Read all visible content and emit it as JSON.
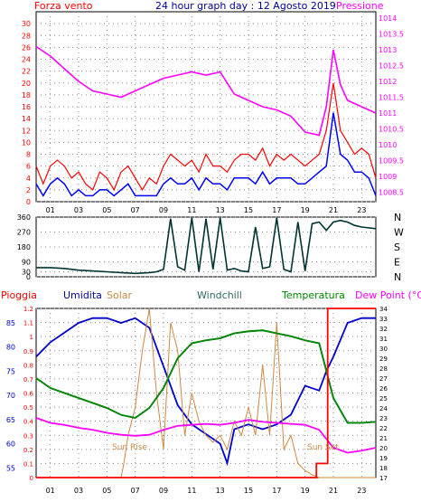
{
  "header": {
    "left_label": "Forza vento",
    "center_title": "24 hour graph day : 12 Agosto 2019",
    "right_label": "Pressione"
  },
  "colors": {
    "wind": "#ff0000",
    "wind_avg": "#0000ff",
    "pressure": "#ff00ff",
    "direction": "#003333",
    "rain": "#ff0000",
    "humidity": "#0000cc",
    "solar": "#cc8844",
    "windchill": "#336666",
    "temperature": "#008800",
    "dewpoint": "#ff00ff",
    "grid": "#888888",
    "axis_dark": "#000000"
  },
  "bottom_labels": {
    "pioggia": "Pioggia",
    "umidita": "Umidita",
    "solar": "Solar",
    "windchill": "Windchill",
    "temperatura": "Temperatura",
    "dewpoint": "Dew Point (°C)",
    "sunrise": "Sun Rise",
    "sunset": "Sun Set"
  },
  "chart_data": [
    {
      "type": "line",
      "title": "24 hour graph day : 12 Agosto 2019",
      "x_ticks": [
        "01",
        "03",
        "05",
        "07",
        "09",
        "11",
        "13",
        "15",
        "17",
        "19",
        "21",
        "23"
      ],
      "x_range": [
        0,
        24
      ],
      "left_axis": {
        "label": "Forza vento",
        "range": [
          0,
          32
        ],
        "ticks": [
          0,
          2,
          4,
          6,
          8,
          10,
          12,
          14,
          16,
          18,
          20,
          22,
          24,
          26,
          28,
          30
        ]
      },
      "right_axis": {
        "label": "Pressione",
        "range": [
          1008.2,
          1014.2
        ],
        "ticks": [
          1008.5,
          1009,
          1009.5,
          1010,
          1010.5,
          1011,
          1011.5,
          1012,
          1012.5,
          1013,
          1013.5,
          1014
        ]
      },
      "grid": true,
      "series": [
        {
          "axis": "left",
          "x": [
            0,
            0.5,
            1,
            1.5,
            2,
            2.5,
            3,
            3.5,
            4,
            4.5,
            5,
            5.5,
            6,
            6.5,
            7,
            7.5,
            8,
            8.5,
            9,
            9.5,
            10,
            10.5,
            11,
            11.5,
            12,
            12.5,
            13,
            13.5,
            14,
            14.5,
            15,
            15.5,
            16,
            16.5,
            17,
            17.5,
            18,
            18.5,
            19,
            19.5,
            20,
            20.5,
            21,
            21.5,
            22,
            22.5,
            23,
            23.5,
            24
          ],
          "y": [
            6,
            3,
            6,
            7,
            6,
            4,
            5,
            3,
            2,
            5,
            4,
            2,
            5,
            6,
            4,
            2,
            4,
            3,
            6,
            8,
            7,
            6,
            7,
            5,
            8,
            6,
            6,
            5,
            7,
            8,
            8,
            7,
            9,
            6,
            8,
            7,
            8,
            7,
            6,
            7,
            8,
            12,
            20,
            12,
            10,
            8,
            9,
            8,
            4
          ]
        },
        {
          "axis": "left",
          "x": [
            0,
            0.5,
            1,
            1.5,
            2,
            2.5,
            3,
            3.5,
            4,
            4.5,
            5,
            5.5,
            6,
            6.5,
            7,
            7.5,
            8,
            8.5,
            9,
            9.5,
            10,
            10.5,
            11,
            11.5,
            12,
            12.5,
            13,
            13.5,
            14,
            14.5,
            15,
            15.5,
            16,
            16.5,
            17,
            17.5,
            18,
            18.5,
            19,
            19.5,
            20,
            20.5,
            21,
            21.5,
            22,
            22.5,
            23,
            23.5,
            24
          ],
          "y": [
            3,
            1,
            3,
            4,
            3,
            1,
            2,
            1,
            1,
            2,
            2,
            1,
            2,
            3,
            1,
            1,
            1,
            1,
            3,
            4,
            3,
            3,
            4,
            2,
            4,
            3,
            3,
            2,
            4,
            4,
            4,
            3,
            5,
            3,
            4,
            4,
            4,
            3,
            3,
            4,
            5,
            6,
            15,
            8,
            7,
            5,
            5,
            4,
            1
          ]
        },
        {
          "axis": "right",
          "x": [
            0,
            1,
            2,
            3,
            4,
            5,
            6,
            7,
            8,
            9,
            10,
            11,
            12,
            13,
            14,
            15,
            16,
            17,
            18,
            19,
            20,
            20.5,
            21,
            21.5,
            22,
            23,
            24
          ],
          "y": [
            1013.1,
            1012.8,
            1012.4,
            1012.0,
            1011.7,
            1011.6,
            1011.5,
            1011.7,
            1011.9,
            1012.1,
            1012.2,
            1012.3,
            1012.2,
            1012.3,
            1011.6,
            1011.4,
            1011.2,
            1011.1,
            1010.9,
            1010.4,
            1010.3,
            1011.2,
            1013.0,
            1011.9,
            1011.4,
            1011.2,
            1011.0
          ]
        }
      ]
    },
    {
      "type": "line",
      "x_range": [
        0,
        24
      ],
      "left_axis": {
        "range": [
          0,
          360
        ],
        "ticks": [
          0,
          30,
          90,
          180,
          270,
          360
        ]
      },
      "right_axis": {
        "labels": [
          "N",
          "W",
          "S",
          "E",
          "N"
        ]
      },
      "grid": true,
      "series": [
        {
          "x": [
            0,
            1,
            2,
            3,
            4,
            5,
            6,
            7,
            8,
            8.5,
            9,
            9.5,
            10,
            10.5,
            11,
            11.5,
            12,
            12.5,
            13,
            13.5,
            14,
            14.5,
            15,
            15.5,
            16,
            16.5,
            17,
            17.5,
            18,
            18.5,
            19,
            19.5,
            20,
            20.5,
            21,
            21.5,
            22,
            22.5,
            23,
            24
          ],
          "y": [
            55,
            55,
            50,
            40,
            35,
            30,
            25,
            20,
            25,
            30,
            45,
            350,
            60,
            40,
            355,
            30,
            350,
            45,
            355,
            40,
            50,
            35,
            30,
            300,
            50,
            60,
            355,
            45,
            30,
            330,
            35,
            320,
            330,
            280,
            330,
            340,
            330,
            310,
            300,
            290
          ]
        }
      ]
    },
    {
      "type": "line",
      "x_range": [
        0,
        24
      ],
      "left_axes": [
        {
          "label": "Pioggia",
          "range": [
            0,
            1.2
          ],
          "ticks": [
            0,
            0.1,
            0.2,
            0.3,
            0.4,
            0.5,
            0.6,
            0.7,
            0.8,
            0.9,
            1,
            1.1,
            1.2
          ]
        },
        {
          "label": "Umidita",
          "range": [
            53,
            88
          ],
          "ticks": [
            55,
            60,
            65,
            70,
            75,
            80,
            85
          ]
        }
      ],
      "right_axis": {
        "label": "Dew Point (°C)",
        "range": [
          17,
          34
        ],
        "ticks": [
          17,
          18,
          19,
          20,
          21,
          22,
          23,
          24,
          25,
          26,
          27,
          28,
          29,
          30,
          31,
          32,
          33,
          34
        ]
      },
      "grid": true,
      "series": [
        {
          "name": "Umidita",
          "axis": "hum",
          "x": [
            0,
            1,
            2,
            3,
            4,
            5,
            6,
            7,
            8,
            9,
            10,
            11,
            12,
            13,
            13.5,
            14,
            15,
            16,
            17,
            18,
            19,
            20,
            20.5,
            21,
            22,
            23,
            24
          ],
          "y": [
            78,
            81,
            83,
            85,
            86,
            86,
            85,
            86,
            84,
            76,
            68,
            64,
            62,
            60,
            56,
            63,
            64,
            63,
            64,
            66,
            72,
            71,
            75,
            78,
            85,
            86,
            86
          ]
        },
        {
          "name": "Solar",
          "axis": "rain",
          "x": [
            0,
            6,
            6.2,
            6.5,
            7,
            7.5,
            8,
            8.5,
            9,
            9.5,
            10,
            10.5,
            11,
            11.5,
            12,
            12.5,
            13,
            13.5,
            14,
            14.5,
            15,
            15.5,
            16,
            16.5,
            17,
            17.5,
            18,
            18.5,
            19,
            19.5,
            20,
            24
          ],
          "y": [
            0,
            0,
            0.1,
            0.3,
            0.5,
            0.9,
            1.2,
            0.6,
            0.2,
            1.1,
            0.9,
            0.3,
            0.6,
            0.4,
            0.3,
            0.25,
            0.3,
            0.2,
            0.4,
            0.3,
            0.5,
            0.3,
            0.8,
            0.3,
            1.1,
            0.2,
            0.3,
            0.1,
            0.05,
            0.02,
            0,
            0
          ]
        },
        {
          "name": "Windchill",
          "axis": "dew",
          "x": [
            0,
            1,
            2,
            3,
            4,
            5,
            6,
            7,
            8,
            9,
            10,
            11,
            12,
            13,
            14,
            15,
            16,
            17,
            18,
            19,
            20,
            21,
            22,
            23,
            24
          ],
          "y": [
            27,
            26,
            25.5,
            25,
            24.5,
            24,
            23.3,
            23,
            24,
            26,
            29,
            30.5,
            30.8,
            31,
            31.5,
            31.7,
            31.8,
            31.5,
            31.2,
            30.8,
            30.5,
            25,
            22.5,
            22.5,
            22.6
          ]
        },
        {
          "name": "Temperatura",
          "axis": "dew",
          "x": [
            0,
            1,
            2,
            3,
            4,
            5,
            6,
            7,
            8,
            9,
            10,
            11,
            12,
            13,
            14,
            15,
            16,
            17,
            18,
            19,
            20,
            21,
            22,
            23,
            24
          ],
          "y": [
            27,
            26,
            25.5,
            25,
            24.5,
            24,
            23.3,
            23,
            24,
            26,
            29,
            30.5,
            30.8,
            31,
            31.5,
            31.7,
            31.8,
            31.5,
            31.2,
            30.8,
            30.5,
            25,
            22.5,
            22.5,
            22.6
          ]
        },
        {
          "name": "Dew Point (°C)",
          "axis": "dew",
          "x": [
            0,
            1,
            2,
            3,
            4,
            5,
            6,
            7,
            8,
            9,
            10,
            11,
            12,
            13,
            14,
            15,
            16,
            17,
            18,
            19,
            20,
            21,
            22,
            23,
            24
          ],
          "y": [
            23,
            22.5,
            22.3,
            22,
            21.8,
            21.5,
            21.3,
            21.2,
            21.3,
            21.8,
            22.2,
            22.3,
            22.4,
            22.3,
            22.5,
            22.8,
            22.6,
            22.5,
            22.4,
            22.3,
            21.8,
            20,
            19.5,
            19.7,
            20
          ]
        },
        {
          "name": "Pioggia",
          "axis": "rain",
          "x": [
            0,
            19.8,
            19.8,
            20.6,
            20.6,
            24
          ],
          "y": [
            0,
            0,
            0.1,
            0.1,
            1.2,
            1.2
          ]
        }
      ],
      "annotations": [
        "Sun Rise",
        "Sun Set"
      ]
    }
  ]
}
